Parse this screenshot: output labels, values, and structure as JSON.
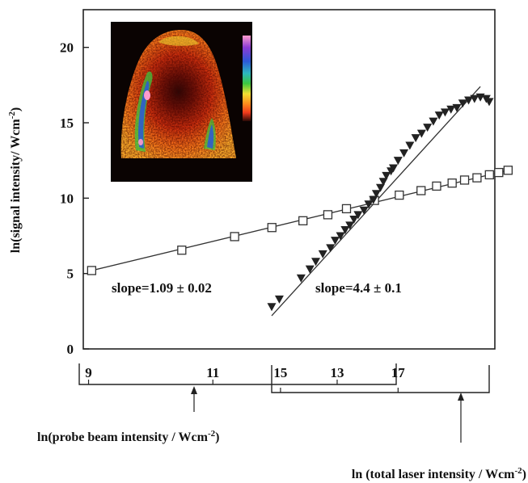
{
  "chart_data": {
    "type": "scatter",
    "ylabel": "ln(signal intensity/ Wcm",
    "ylabel_sup": "-2",
    "ylabel_close": ")",
    "ylim": [
      0,
      22.5
    ],
    "yticks": [
      "0",
      "5",
      "10",
      "15",
      "20"
    ],
    "ytick_values": [
      0,
      5,
      10,
      15,
      20
    ],
    "grid": false,
    "series": [
      {
        "marker": "open-square",
        "color": "#333333",
        "axis": "probe",
        "points": [
          [
            9.05,
            5.2
          ],
          [
            10.5,
            6.55
          ],
          [
            11.35,
            7.45
          ],
          [
            11.95,
            8.05
          ],
          [
            12.45,
            8.5
          ],
          [
            12.85,
            8.9
          ],
          [
            13.15,
            9.3
          ],
          [
            13.6,
            9.85
          ],
          [
            14.0,
            10.2
          ],
          [
            14.35,
            10.5
          ],
          [
            14.6,
            10.8
          ],
          [
            14.85,
            11.0
          ],
          [
            15.05,
            11.2
          ],
          [
            15.25,
            11.35
          ],
          [
            15.45,
            11.55
          ],
          [
            15.6,
            11.7
          ],
          [
            15.75,
            11.85
          ]
        ]
      },
      {
        "marker": "filled-triangle-down",
        "color": "#222222",
        "axis": "total",
        "points": [
          [
            14.85,
            2.8
          ],
          [
            14.98,
            3.3
          ],
          [
            15.35,
            4.7
          ],
          [
            15.5,
            5.3
          ],
          [
            15.6,
            5.8
          ],
          [
            15.72,
            6.3
          ],
          [
            15.85,
            6.7
          ],
          [
            15.93,
            7.2
          ],
          [
            16.02,
            7.5
          ],
          [
            16.1,
            7.9
          ],
          [
            16.18,
            8.2
          ],
          [
            16.25,
            8.6
          ],
          [
            16.32,
            8.9
          ],
          [
            16.42,
            9.2
          ],
          [
            16.5,
            9.6
          ],
          [
            16.58,
            9.9
          ],
          [
            16.63,
            10.3
          ],
          [
            16.7,
            10.7
          ],
          [
            16.75,
            11.1
          ],
          [
            16.8,
            11.5
          ],
          [
            16.88,
            11.8
          ],
          [
            16.92,
            12.0
          ],
          [
            17.0,
            12.5
          ],
          [
            17.1,
            13.0
          ],
          [
            17.2,
            13.5
          ],
          [
            17.3,
            14.0
          ],
          [
            17.4,
            14.3
          ],
          [
            17.5,
            14.7
          ],
          [
            17.6,
            15.1
          ],
          [
            17.7,
            15.5
          ],
          [
            17.8,
            15.7
          ],
          [
            17.9,
            15.9
          ],
          [
            18.0,
            16.0
          ],
          [
            18.1,
            16.3
          ],
          [
            18.2,
            16.5
          ],
          [
            18.3,
            16.6
          ],
          [
            18.4,
            16.7
          ],
          [
            18.5,
            16.6
          ],
          [
            18.55,
            16.4
          ]
        ]
      }
    ],
    "fit_lines": [
      {
        "axis": "probe",
        "from": [
          9.05,
          5.2
        ],
        "to": [
          15.7,
          11.8
        ]
      },
      {
        "axis": "total",
        "from": [
          14.85,
          2.2
        ],
        "to": [
          18.4,
          17.4
        ]
      }
    ],
    "annotations": [
      "slope=1.09 ± 0.02",
      "slope=4.4 ± 0.1"
    ],
    "x_axis_probe": {
      "ticks": [
        "9",
        "11",
        "13"
      ],
      "tick_values": [
        9,
        11,
        13
      ],
      "range": [
        8.85,
        13.95
      ],
      "label": "ln(probe beam intensity / Wcm",
      "label_sup": "-2",
      "label_close": ")"
    },
    "x_axis_total": {
      "ticks": [
        "15",
        "17"
      ],
      "tick_values": [
        15,
        17
      ],
      "range": [
        14.85,
        18.55
      ],
      "label": "ln (total laser intensity / Wcm",
      "label_sup": "-2",
      "label_close": ")"
    },
    "inset": {
      "type": "heatmap",
      "colorbar_colors": [
        "#ff9ccd",
        "#8b3bd6",
        "#2c58d8",
        "#2cb8c0",
        "#3bc640",
        "#f2df32",
        "#ff8a1c",
        "#f03a1c",
        "#2a0a06"
      ]
    }
  }
}
